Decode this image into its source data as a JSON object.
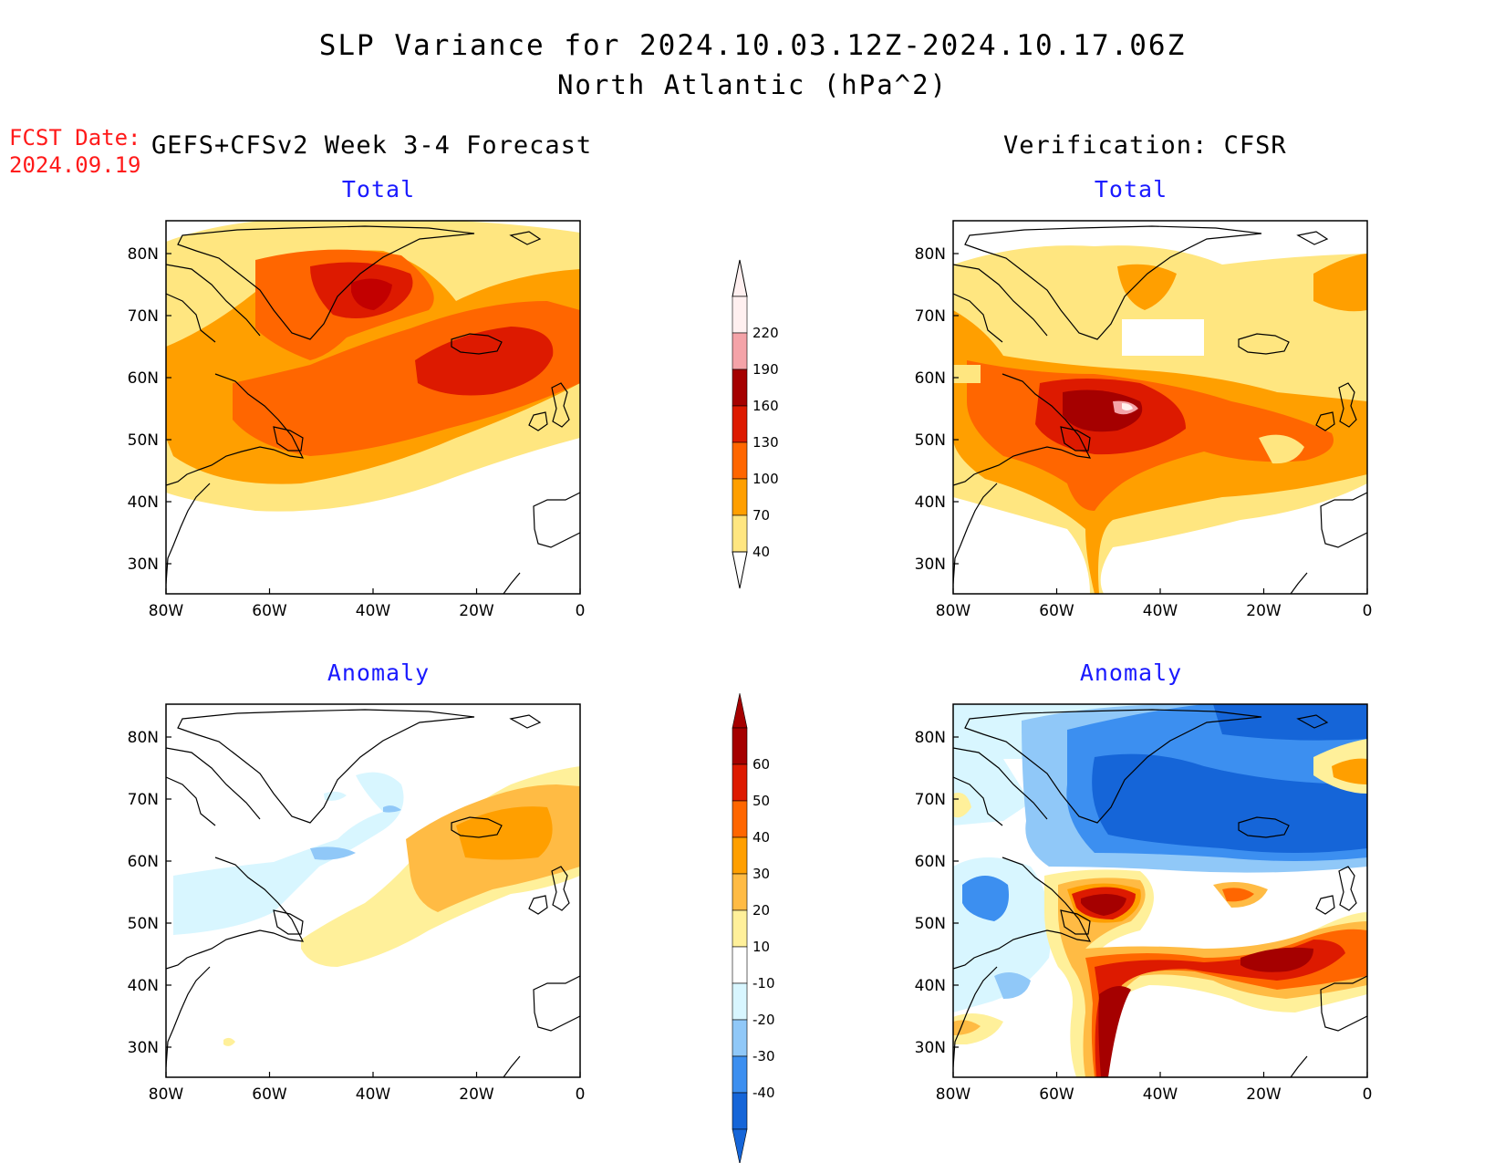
{
  "header": {
    "title": "SLP Variance for 2024.10.03.12Z-2024.10.17.06Z",
    "subtitle": "North Atlantic (hPa^2)",
    "fcst_label": "FCST Date:",
    "fcst_date": "2024.09.19",
    "left_heading": "GEFS+CFSv2 Week 3-4 Forecast",
    "right_heading": "Verification: CFSR"
  },
  "panels": {
    "fc_total": {
      "title": "Total"
    },
    "fc_anom": {
      "title": "Anomaly"
    },
    "ver_total": {
      "title": "Total"
    },
    "ver_anom": {
      "title": "Anomaly"
    }
  },
  "axes": {
    "lat_labels": [
      "80N",
      "70N",
      "60N",
      "50N",
      "40N",
      "30N"
    ],
    "lon_labels": [
      "80W",
      "60W",
      "40W",
      "20W",
      "0"
    ]
  },
  "colorbar_total": {
    "labels": [
      "220",
      "190",
      "160",
      "130",
      "100",
      "70",
      "40"
    ],
    "colors": [
      "#fff0f0",
      "#f4a3a8",
      "#a50000",
      "#dd1a00",
      "#ff6600",
      "#ff9f00",
      "#ffe680"
    ]
  },
  "colorbar_anomaly": {
    "labels": [
      "60",
      "50",
      "40",
      "30",
      "20",
      "10",
      "-10",
      "-20",
      "-30",
      "-40"
    ],
    "colors": [
      "#a50000",
      "#dd1a00",
      "#ff6600",
      "#ff9f00",
      "#ffbb44",
      "#fff09a",
      "#ffffff",
      "#d8f6ff",
      "#90c8f8",
      "#3c8ff0",
      "#1565d8"
    ]
  }
}
